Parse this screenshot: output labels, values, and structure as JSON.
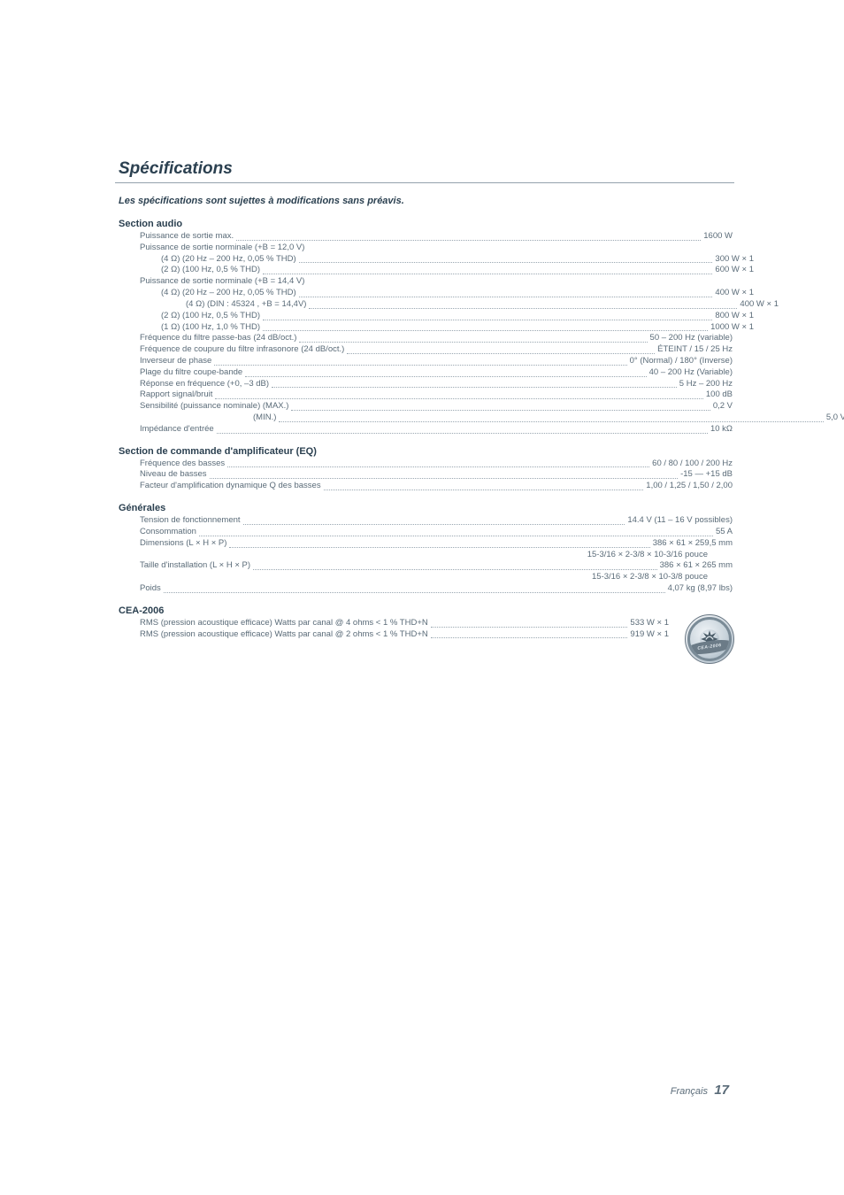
{
  "title": "Spécifications",
  "notice": "Les spécifications sont sujettes à modifications sans préavis.",
  "sections": {
    "audio": {
      "heading": "Section audio",
      "lines": [
        {
          "label": "Puissance de sortie max.",
          "value": "1600 W",
          "indent": 0
        },
        {
          "label": "Puissance de sortie norminale (+B = 12,0 V)",
          "value": "",
          "nofill": true,
          "indent": 0
        },
        {
          "label": "(4 Ω) (20 Hz – 200 Hz, 0,05 % THD)",
          "value": "300 W × 1",
          "indent": 1
        },
        {
          "label": "(2 Ω) (100 Hz, 0,5 % THD)",
          "value": "600 W × 1",
          "indent": 1
        },
        {
          "label": "Puissance de sortie norminale (+B = 14,4 V)",
          "value": "",
          "nofill": true,
          "indent": 0
        },
        {
          "label": "(4 Ω) (20 Hz – 200 Hz, 0,05 % THD)",
          "value": "400 W × 1",
          "indent": 1
        },
        {
          "label": "(4 Ω) (DIN : 45324 , +B = 14,4V)",
          "value": "400 W × 1",
          "indent": 2
        },
        {
          "label": "(2 Ω) (100 Hz, 0,5 % THD)",
          "value": "800 W × 1",
          "indent": 1
        },
        {
          "label": "(1 Ω) (100 Hz, 1,0 % THD)",
          "value": " 1000 W × 1",
          "indent": 1
        },
        {
          "label": "Fréquence du filtre passe-bas (24 dB/oct.)",
          "value": "50 – 200 Hz (variable)",
          "indent": 0
        },
        {
          "label": "Fréquence de coupure du filtre infrasonore (24 dB/oct.)",
          "value": " ÉTEINT / 15 / 25 Hz",
          "indent": 0
        },
        {
          "label": "Inverseur de phase",
          "value": "0° (Normal) / 180° (Inverse)",
          "indent": 0
        },
        {
          "label": "Plage du filtre coupe-bande",
          "value": " 40 – 200 Hz (Variable)",
          "indent": 0
        },
        {
          "label": "Réponse en fréquence (+0, –3 dB)",
          "value": "5 Hz – 200 Hz",
          "indent": 0
        },
        {
          "label": "Rapport signal/bruit",
          "value": "100 dB",
          "indent": 0
        },
        {
          "label": "Sensibilité (puissance nominale) (MAX.)",
          "value": "0,2 V",
          "indent": 0
        },
        {
          "label": "(MIN.)",
          "value": "5,0 V",
          "indent": 3,
          "minlabel": true
        },
        {
          "label": "Impédance d'entrée",
          "value": " 10 kΩ",
          "indent": 0
        }
      ]
    },
    "eq": {
      "heading": "Section de commande d'amplificateur (EQ)",
      "lines": [
        {
          "label": "Fréquence des basses",
          "value": " 60 / 80 / 100 / 200 Hz"
        },
        {
          "label": "Niveau de basses",
          "value": "-15 — +15 dB"
        },
        {
          "label": "Facteur d'amplification dynamique Q des basses",
          "value": " 1,00 / 1,25 / 1,50 / 2,00"
        }
      ]
    },
    "general": {
      "heading": "Générales",
      "lines": [
        {
          "label": "Tension de fonctionnement",
          "value": " 14.4 V (11 – 16 V possibles)"
        },
        {
          "label": "Consommation",
          "value": "55 A"
        },
        {
          "label": "Dimensions (L × H × P)",
          "value": "386 × 61 × 259,5 mm"
        },
        {
          "label": "",
          "value": "15-3/16 × 2-3/8 × 10-3/16 pouce",
          "extra": true
        },
        {
          "label": "Taille d'installation (L × H × P)",
          "value": " 386 × 61 × 265 mm"
        },
        {
          "label": "",
          "value": "15-3/16 × 2-3/8 × 10-3/8 pouce",
          "extra": true
        },
        {
          "label": "Poids",
          "value": "4,07 kg (8,97 lbs)"
        }
      ]
    },
    "cea": {
      "heading": "CEA-2006",
      "lines": [
        {
          "label": "RMS (pression acoustique efficace) Watts par canal @ 4 ohms < 1 % THD+N",
          "value": "533 W × 1"
        },
        {
          "label": "RMS (pression acoustique efficace) Watts par canal @ 2 ohms < 1 % THD+N",
          "value": "919 W × 1"
        }
      ],
      "badge_band": "CEA-2006"
    }
  },
  "footer": {
    "lang": "Français",
    "page": "17"
  }
}
